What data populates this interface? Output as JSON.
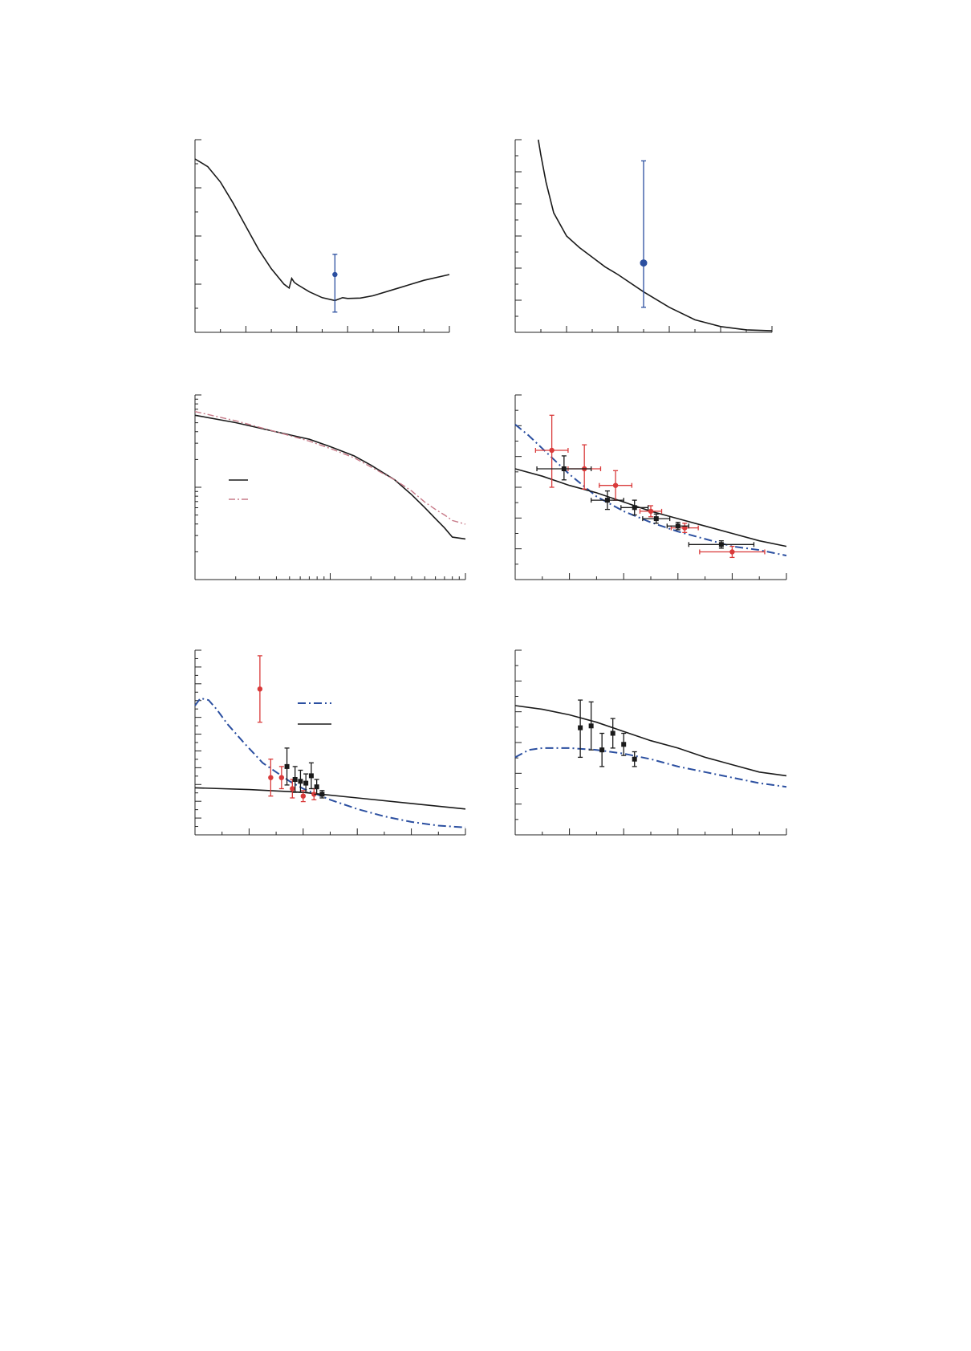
{
  "colors": {
    "theory_solid": "#1a1a1a",
    "theory_dashdot_blue": "#2b4fa0",
    "theory_dashdot_red": "#c77a88",
    "data_blue": "#2b4fa0",
    "data_red": "#d93a3a",
    "data_black": "#1a1a1a"
  },
  "chart_data": [
    {
      "id": "panel-a",
      "type": "line",
      "xlim": [
        0,
        1
      ],
      "ylim": [
        0,
        1
      ],
      "grid": false,
      "series": [
        {
          "style": "solid",
          "x": [
            0,
            0.05,
            0.1,
            0.15,
            0.2,
            0.25,
            0.3,
            0.35,
            0.37,
            0.38,
            0.39,
            0.4,
            0.45,
            0.5,
            0.55,
            0.58,
            0.6,
            0.65,
            0.7,
            0.8,
            0.9,
            1.0
          ],
          "y": [
            0.9,
            0.86,
            0.78,
            0.67,
            0.55,
            0.43,
            0.33,
            0.25,
            0.23,
            0.28,
            0.26,
            0.25,
            0.21,
            0.18,
            0.165,
            0.18,
            0.176,
            0.178,
            0.19,
            0.23,
            0.27,
            0.3
          ]
        }
      ],
      "points": [
        {
          "style": "blue-circle",
          "x": 0.55,
          "y": 0.3,
          "yerr": [
            0.195,
            0.105
          ]
        }
      ]
    },
    {
      "id": "panel-b",
      "type": "line",
      "xlim": [
        0,
        1
      ],
      "ylim": [
        0,
        1
      ],
      "grid": false,
      "series": [
        {
          "style": "solid",
          "x": [
            0.09,
            0.1,
            0.12,
            0.15,
            0.2,
            0.25,
            0.3,
            0.35,
            0.4,
            0.5,
            0.6,
            0.7,
            0.8,
            0.9,
            1.0
          ],
          "y": [
            1.0,
            0.92,
            0.78,
            0.62,
            0.5,
            0.44,
            0.39,
            0.34,
            0.3,
            0.21,
            0.13,
            0.065,
            0.03,
            0.013,
            0.008
          ]
        }
      ],
      "points": [
        {
          "style": "blue-circle-large",
          "x": 0.5,
          "y": 0.36,
          "yerr": [
            0.23,
            0.53
          ]
        }
      ]
    },
    {
      "id": "panel-c",
      "type": "line",
      "xscale": "log",
      "xlim": [
        0.1,
        10
      ],
      "ylim": [
        0,
        1
      ],
      "grid": false,
      "legend": "center-left",
      "series": [
        {
          "style": "solid",
          "x": [
            0.1,
            0.2,
            0.4,
            0.7,
            1.0,
            1.5,
            2.0,
            3.0,
            4.0,
            5.0,
            6.0,
            7.0,
            8.0,
            10.0
          ],
          "y": [
            0.89,
            0.85,
            0.8,
            0.76,
            0.72,
            0.67,
            0.62,
            0.54,
            0.46,
            0.39,
            0.33,
            0.28,
            0.23,
            0.22
          ]
        },
        {
          "style": "dashdot-red",
          "x": [
            0.1,
            0.2,
            0.4,
            0.7,
            1.0,
            1.5,
            2.0,
            3.0,
            4.0,
            5.0,
            6.0,
            7.0,
            8.0,
            10.0
          ],
          "y": [
            0.91,
            0.86,
            0.8,
            0.75,
            0.71,
            0.66,
            0.61,
            0.54,
            0.48,
            0.42,
            0.38,
            0.35,
            0.32,
            0.3
          ]
        }
      ],
      "points": []
    },
    {
      "id": "panel-d",
      "type": "scatter",
      "xlim": [
        0,
        1
      ],
      "ylim": [
        0,
        1
      ],
      "grid": false,
      "series": [
        {
          "style": "dashdot-blue",
          "x": [
            0,
            0.05,
            0.1,
            0.15,
            0.2,
            0.3,
            0.4,
            0.5,
            0.6,
            0.7,
            0.8,
            0.9,
            1.0
          ],
          "y": [
            0.84,
            0.78,
            0.71,
            0.64,
            0.57,
            0.45,
            0.37,
            0.31,
            0.26,
            0.22,
            0.18,
            0.16,
            0.13
          ]
        },
        {
          "style": "solid",
          "x": [
            0,
            0.1,
            0.2,
            0.3,
            0.4,
            0.5,
            0.6,
            0.7,
            0.8,
            0.9,
            1.0
          ],
          "y": [
            0.6,
            0.56,
            0.51,
            0.47,
            0.42,
            0.37,
            0.33,
            0.29,
            0.25,
            0.21,
            0.18
          ]
        }
      ],
      "points": [
        {
          "style": "red-circle",
          "x": 0.135,
          "y": 0.7,
          "yerr": [
            0.2,
            0.19
          ],
          "xerr": [
            0.06,
            0.06
          ]
        },
        {
          "style": "red-circle",
          "x": 0.255,
          "y": 0.6,
          "yerr": [
            0.11,
            0.13
          ],
          "xerr": [
            0.06,
            0.06
          ]
        },
        {
          "style": "red-circle",
          "x": 0.37,
          "y": 0.51,
          "yerr": [
            0.08,
            0.08
          ],
          "xerr": [
            0.06,
            0.06
          ]
        },
        {
          "style": "red-circle",
          "x": 0.5,
          "y": 0.37,
          "yerr": [
            0.03,
            0.03
          ],
          "xerr": [
            0.04,
            0.04
          ]
        },
        {
          "style": "red-circle",
          "x": 0.625,
          "y": 0.28,
          "yerr": [
            0.025,
            0.025
          ],
          "xerr": [
            0.05,
            0.05
          ]
        },
        {
          "style": "red-circle",
          "x": 0.8,
          "y": 0.15,
          "yerr": [
            0.03,
            0.03
          ],
          "xerr": [
            0.12,
            0.12
          ]
        },
        {
          "style": "black-square",
          "x": 0.18,
          "y": 0.6,
          "yerr": [
            0.06,
            0.07
          ],
          "xerr": [
            0.1,
            0.1
          ]
        },
        {
          "style": "black-square",
          "x": 0.34,
          "y": 0.43,
          "yerr": [
            0.05,
            0.05
          ],
          "xerr": [
            0.06,
            0.06
          ]
        },
        {
          "style": "black-square",
          "x": 0.44,
          "y": 0.39,
          "yerr": [
            0.04,
            0.04
          ],
          "xerr": [
            0.05,
            0.05
          ]
        },
        {
          "style": "black-square",
          "x": 0.52,
          "y": 0.33,
          "yerr": [
            0.025,
            0.025
          ],
          "xerr": [
            0.05,
            0.05
          ]
        },
        {
          "style": "black-square",
          "x": 0.6,
          "y": 0.29,
          "yerr": [
            0.02,
            0.02
          ],
          "xerr": [
            0.04,
            0.04
          ]
        },
        {
          "style": "black-square",
          "x": 0.76,
          "y": 0.19,
          "yerr": [
            0.02,
            0.02
          ],
          "xerr": [
            0.12,
            0.12
          ]
        }
      ]
    },
    {
      "id": "panel-e",
      "type": "scatter",
      "xlim": [
        0,
        1
      ],
      "ylim": [
        0,
        1
      ],
      "grid": false,
      "legend": "top-center",
      "series": [
        {
          "style": "dashdot-blue",
          "x": [
            0,
            0.02,
            0.05,
            0.08,
            0.12,
            0.18,
            0.25,
            0.3,
            0.35,
            0.4,
            0.5,
            0.6,
            0.7,
            0.8,
            0.9,
            1.0
          ],
          "y": [
            0.7,
            0.74,
            0.73,
            0.68,
            0.6,
            0.5,
            0.39,
            0.34,
            0.29,
            0.25,
            0.19,
            0.14,
            0.1,
            0.07,
            0.05,
            0.04
          ]
        },
        {
          "style": "solid",
          "x": [
            0,
            0.2,
            0.4,
            0.6,
            0.8,
            1.0
          ],
          "y": [
            0.255,
            0.245,
            0.23,
            0.2,
            0.17,
            0.14
          ]
        }
      ],
      "points": [
        {
          "style": "red-circle",
          "x": 0.24,
          "y": 0.79,
          "yerr": [
            0.18,
            0.18
          ]
        },
        {
          "style": "red-circle",
          "x": 0.28,
          "y": 0.31,
          "yerr": [
            0.1,
            0.1
          ]
        },
        {
          "style": "red-circle",
          "x": 0.32,
          "y": 0.31,
          "yerr": [
            0.06,
            0.06
          ]
        },
        {
          "style": "red-circle",
          "x": 0.36,
          "y": 0.25,
          "yerr": [
            0.05,
            0.05
          ]
        },
        {
          "style": "red-circle",
          "x": 0.4,
          "y": 0.21,
          "yerr": [
            0.03,
            0.03
          ]
        },
        {
          "style": "red-circle",
          "x": 0.44,
          "y": 0.22,
          "yerr": [
            0.03,
            0.03
          ]
        },
        {
          "style": "black-square",
          "x": 0.34,
          "y": 0.37,
          "yerr": [
            0.1,
            0.1
          ]
        },
        {
          "style": "black-square",
          "x": 0.37,
          "y": 0.3,
          "yerr": [
            0.07,
            0.07
          ]
        },
        {
          "style": "black-square",
          "x": 0.39,
          "y": 0.29,
          "yerr": [
            0.06,
            0.06
          ]
        },
        {
          "style": "black-square",
          "x": 0.41,
          "y": 0.28,
          "yerr": [
            0.05,
            0.05
          ]
        },
        {
          "style": "black-square",
          "x": 0.43,
          "y": 0.32,
          "yerr": [
            0.07,
            0.07
          ]
        },
        {
          "style": "black-square",
          "x": 0.45,
          "y": 0.26,
          "yerr": [
            0.04,
            0.04
          ]
        },
        {
          "style": "black-square",
          "x": 0.47,
          "y": 0.22,
          "yerr": [
            0.02,
            0.02
          ]
        }
      ]
    },
    {
      "id": "panel-f",
      "type": "scatter",
      "xlim": [
        0,
        1
      ],
      "ylim": [
        0,
        1
      ],
      "grid": false,
      "series": [
        {
          "style": "solid",
          "x": [
            0,
            0.1,
            0.2,
            0.3,
            0.4,
            0.5,
            0.6,
            0.7,
            0.8,
            0.9,
            1.0
          ],
          "y": [
            0.7,
            0.68,
            0.65,
            0.61,
            0.56,
            0.51,
            0.47,
            0.42,
            0.38,
            0.34,
            0.32
          ]
        },
        {
          "style": "dashdot-blue",
          "x": [
            0,
            0.05,
            0.1,
            0.2,
            0.3,
            0.4,
            0.5,
            0.6,
            0.7,
            0.8,
            0.9,
            1.0
          ],
          "y": [
            0.42,
            0.46,
            0.47,
            0.47,
            0.46,
            0.44,
            0.41,
            0.37,
            0.34,
            0.31,
            0.28,
            0.26
          ]
        }
      ],
      "points": [
        {
          "style": "black-square",
          "x": 0.24,
          "y": 0.58,
          "yerr": [
            0.16,
            0.15
          ]
        },
        {
          "style": "black-square",
          "x": 0.28,
          "y": 0.59,
          "yerr": [
            0.13,
            0.13
          ]
        },
        {
          "style": "black-square",
          "x": 0.32,
          "y": 0.46,
          "yerr": [
            0.09,
            0.09
          ]
        },
        {
          "style": "black-square",
          "x": 0.36,
          "y": 0.55,
          "yerr": [
            0.08,
            0.08
          ]
        },
        {
          "style": "black-square",
          "x": 0.4,
          "y": 0.49,
          "yerr": [
            0.06,
            0.06
          ]
        },
        {
          "style": "black-square",
          "x": 0.44,
          "y": 0.41,
          "yerr": [
            0.04,
            0.04
          ]
        }
      ]
    }
  ]
}
